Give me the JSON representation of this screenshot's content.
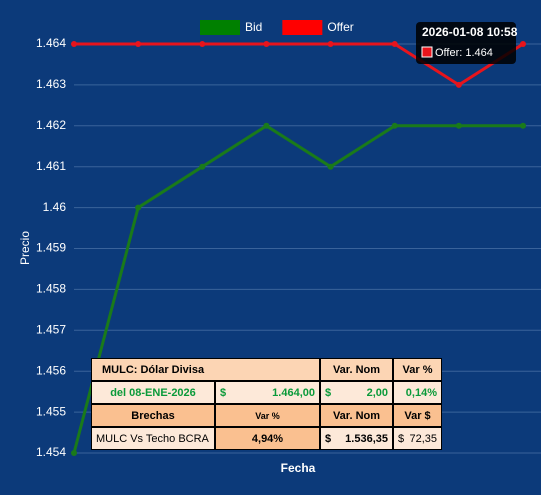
{
  "chart_data": {
    "type": "line",
    "categories": [
      null,
      null,
      null,
      null,
      null,
      null,
      null,
      null
    ],
    "series": [
      {
        "name": "Bid",
        "color": "#1a7a1a",
        "values": [
          1.454,
          1.46,
          1.461,
          1.462,
          1.461,
          1.462,
          1.462,
          1.462
        ]
      },
      {
        "name": "Offer",
        "color": "#e8141c",
        "values": [
          1.464,
          1.464,
          1.464,
          1.464,
          1.464,
          1.464,
          1.463,
          1.464
        ]
      }
    ],
    "ylabel": "Precio",
    "xlabel": "Fecha",
    "ylim": [
      1.454,
      1.464
    ],
    "yticks": [
      1.454,
      1.455,
      1.456,
      1.457,
      1.458,
      1.459,
      1.46,
      1.461,
      1.462,
      1.463,
      1.464
    ],
    "grid": true,
    "legend": "top",
    "tooltip": {
      "title": "2026-01-08 10:58",
      "text": "Offer: 1.464"
    }
  },
  "table": {
    "rows": [
      [
        "MULC: Dólar Divisa",
        "Var. Nom",
        "Var %"
      ],
      [
        "del 08-ENE-2026",
        "$",
        "1.464,00",
        "$",
        "2,00",
        "0,14%"
      ],
      [
        "Brechas",
        "Var %",
        "Var. Nom",
        "Var $"
      ],
      [
        "MULC Vs Techo BCRA",
        "4,94%",
        "$",
        "1.536,35",
        "$",
        "72,35"
      ]
    ]
  }
}
